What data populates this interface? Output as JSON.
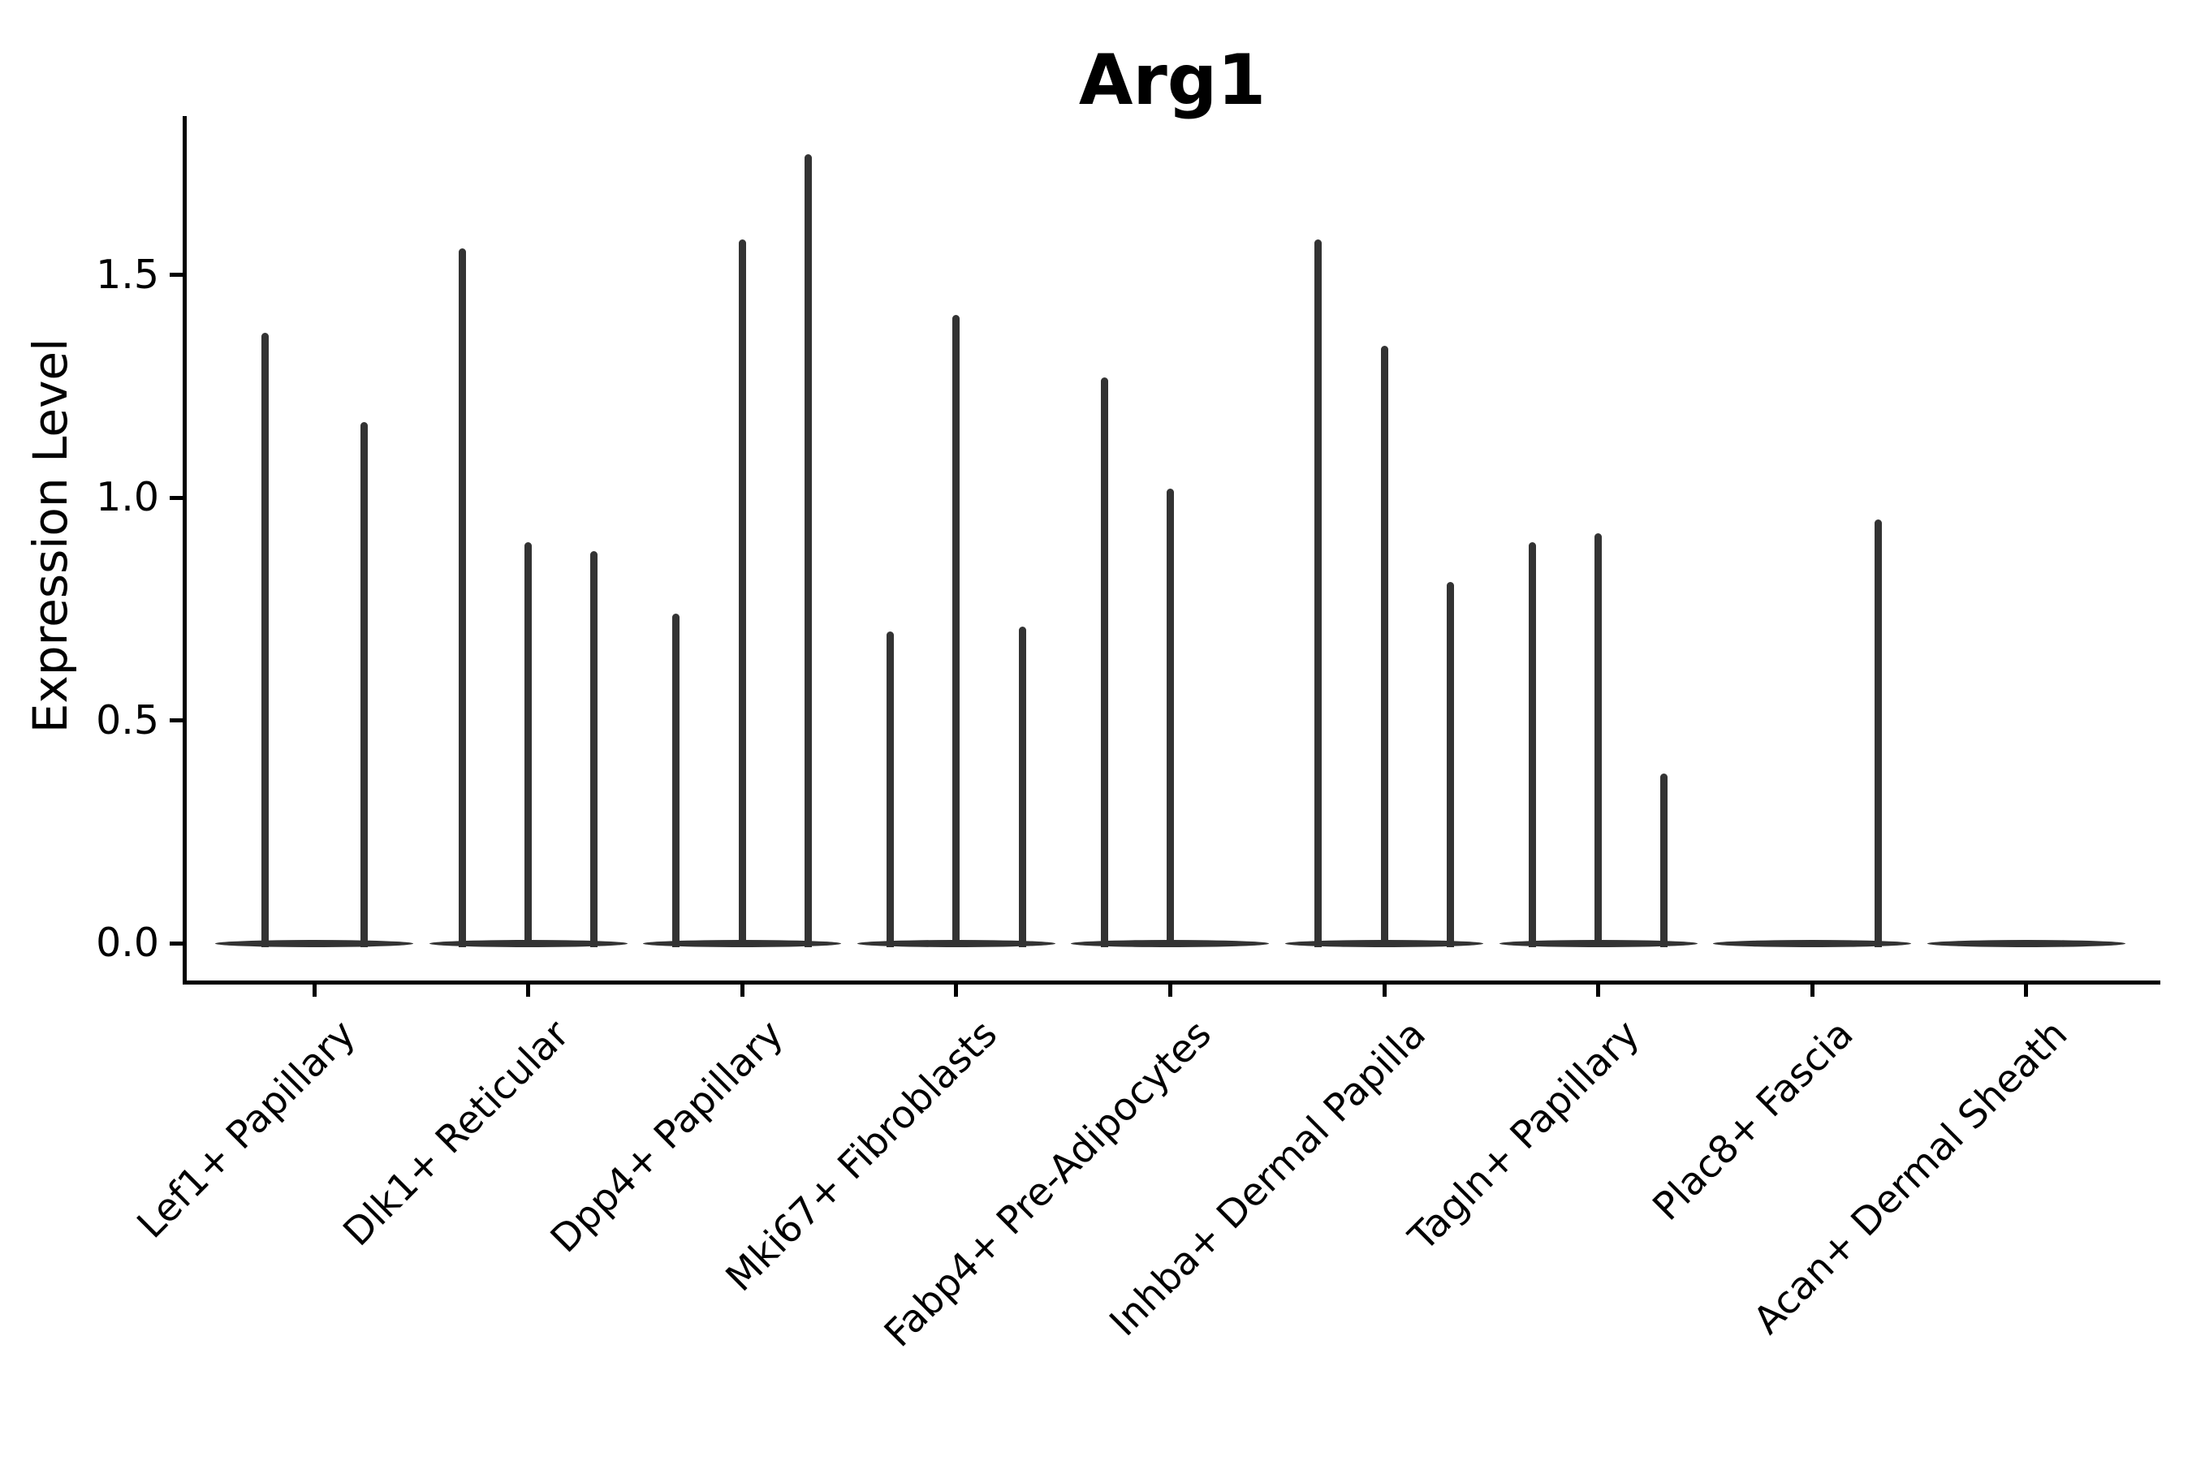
{
  "title": "Arg1",
  "chart_data": {
    "type": "violin",
    "title": "Arg1",
    "ylabel": "Expression Level",
    "xlabel": "",
    "ylim": [
      -0.09,
      1.86
    ],
    "grid": false,
    "legend": "none",
    "background": "#ffffff",
    "yticks": [
      {
        "value": 0.0,
        "label": "0.0"
      },
      {
        "value": 0.5,
        "label": "0.5"
      },
      {
        "value": 1.0,
        "label": "1.0"
      },
      {
        "value": 1.5,
        "label": "1.5"
      }
    ],
    "categories": [
      "Lef1+ Papillary",
      "Dlk1+ Reticular",
      "Dpp4+ Papillary",
      "Mki67+ Fibroblasts",
      "Fabp4+ Pre-Adipocytes",
      "Inhba+ Dermal Papilla",
      "Tagln+ Papillary",
      "Plac8+ Fascia",
      "Acan+ Dermal Sheath"
    ],
    "series": [
      {
        "name": "Lef1+ Papillary",
        "violin_maxima": [
          1.37,
          1.17
        ]
      },
      {
        "name": "Dlk1+ Reticular",
        "violin_maxima": [
          1.56,
          0.9,
          0.88
        ]
      },
      {
        "name": "Dpp4+ Papillary",
        "violin_maxima": [
          0.74,
          1.58,
          1.77
        ]
      },
      {
        "name": "Mki67+ Fibroblasts",
        "violin_maxima": [
          0.7,
          1.41,
          0.71
        ]
      },
      {
        "name": "Fabp4+ Pre-Adipocytes",
        "violin_maxima": [
          1.27,
          1.02,
          0.0
        ]
      },
      {
        "name": "Inhba+ Dermal Papilla",
        "violin_maxima": [
          1.58,
          1.34,
          0.81
        ]
      },
      {
        "name": "Tagln+ Papillary",
        "violin_maxima": [
          0.9,
          0.92,
          0.38
        ]
      },
      {
        "name": "Plac8+ Fascia",
        "violin_maxima": [
          0.0,
          0.0,
          0.95
        ]
      },
      {
        "name": "Acan+ Dermal Sheath",
        "violin_maxima": [
          0.0,
          0.0,
          0.0
        ]
      }
    ],
    "colors": {
      "violin": "#333333",
      "axis": "#000000",
      "text": "#000000"
    }
  }
}
